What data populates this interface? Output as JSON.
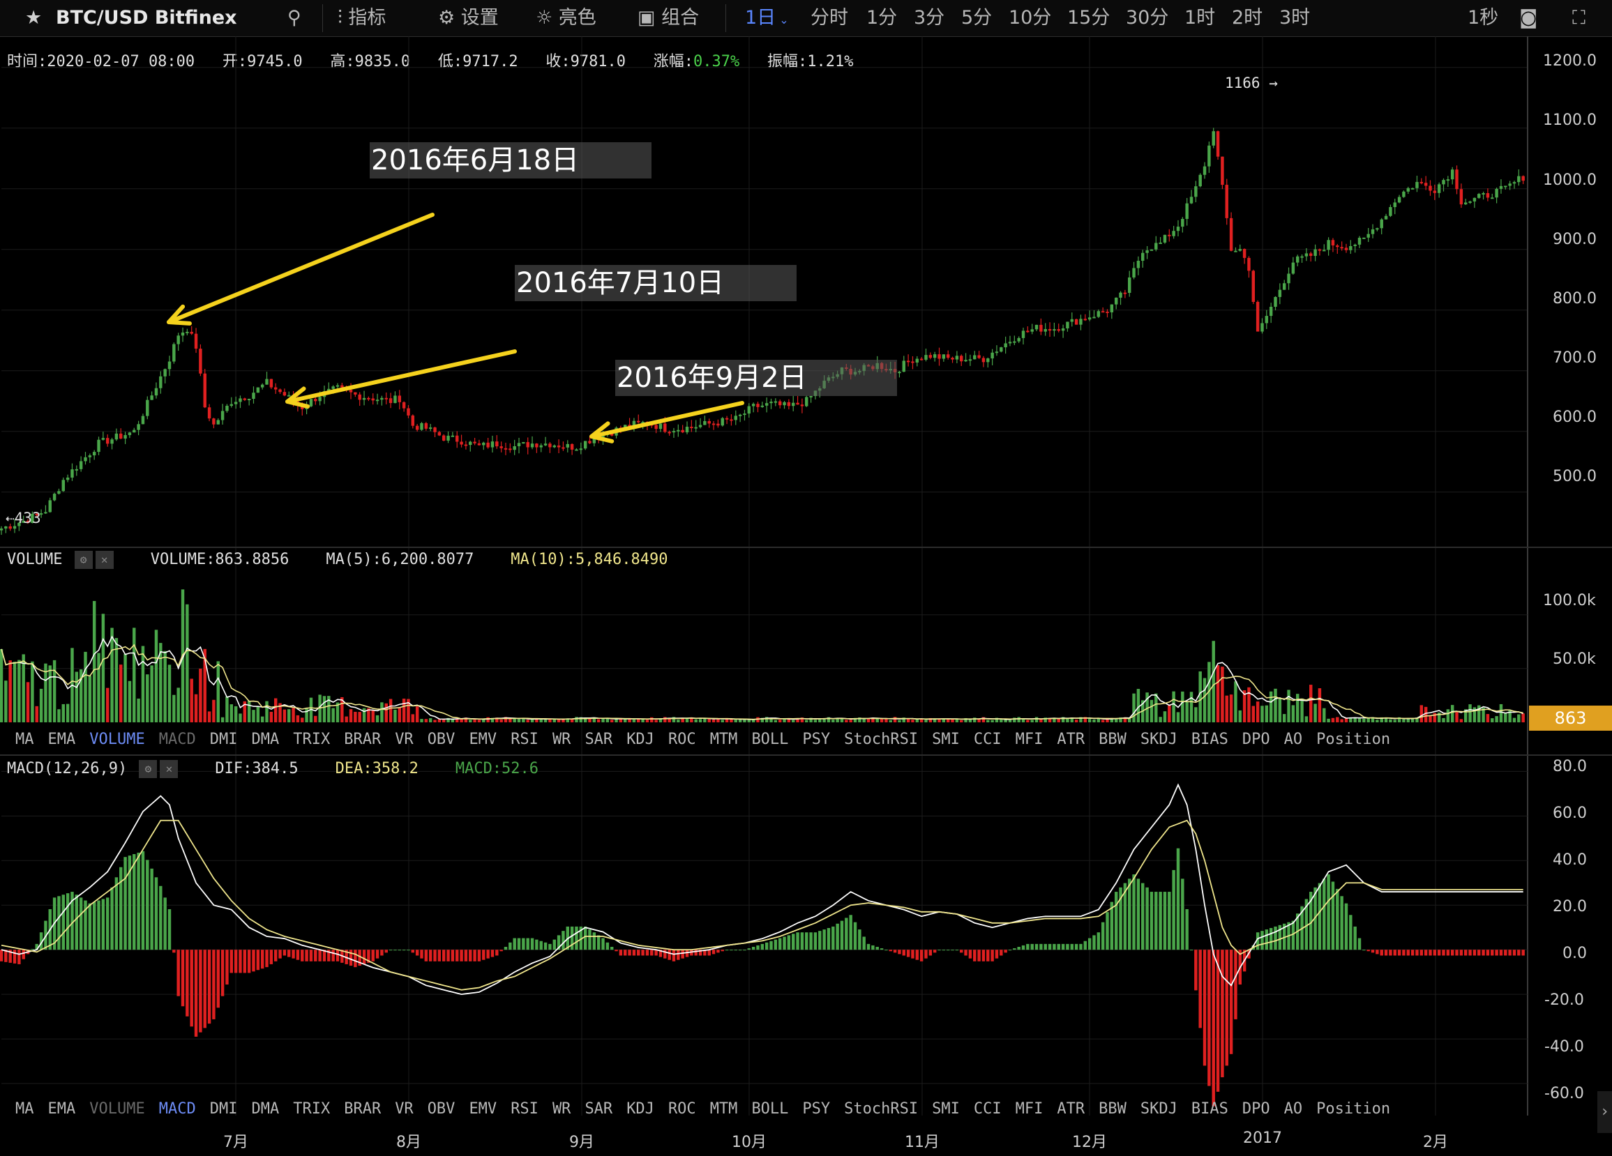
{
  "toolbar": {
    "symbol": "BTC/USD Bitfinex",
    "items": [
      "指标",
      "设置",
      "亮色",
      "组合"
    ],
    "active_interval": "1日",
    "intervals": [
      "分时",
      "1分",
      "3分",
      "5分",
      "10分",
      "15分",
      "30分",
      "1时",
      "2时",
      "3时"
    ],
    "right_interval": "1秒"
  },
  "info": {
    "time": "时间:2020-02-07 08:00",
    "open": "开:9745.0",
    "high": "高:9835.0",
    "low": "低:9717.2",
    "close": "收:9781.0",
    "change_label": "涨幅:",
    "change_value": "0.37%",
    "amplitude": "振幅:1.21%"
  },
  "volume_info": {
    "name": "VOLUME",
    "volume": "VOLUME:863.8856",
    "ma5": "MA(5):6,200.8077",
    "ma10": "MA(10):5,846.8490",
    "current": "863"
  },
  "macd_info": {
    "name": "MACD(12,26,9)",
    "dif": "DIF:384.5",
    "dea": "DEA:358.2",
    "macd": "MACD:52.6"
  },
  "indicator_tabs": [
    "MA",
    "EMA",
    "VOLUME",
    "MACD",
    "DMI",
    "DMA",
    "TRIX",
    "BRAR",
    "VR",
    "OBV",
    "EMV",
    "RSI",
    "WR",
    "SAR",
    "KDJ",
    "ROC",
    "MTM",
    "BOLL",
    "PSY",
    "StochRSI",
    "SMI",
    "CCI",
    "MFI",
    "ATR",
    "BBW",
    "SKDJ",
    "BIAS",
    "DPO",
    "AO",
    "Position"
  ],
  "annotations": [
    "2016年6月18日",
    "2016年7月10日",
    "2016年9月2日"
  ],
  "colors": {
    "up": "#4aa64a",
    "down": "#e02020",
    "arrow": "#f5d21d",
    "ma5": "#ffffff",
    "ma10": "#f0e68c",
    "price_tag": "#e0a020"
  },
  "chart_data": [
    {
      "type": "candlestick",
      "title": "BTC/USD Bitfinex",
      "x_labels": [
        "7月",
        "8月",
        "9月",
        "10月",
        "11月",
        "12月",
        "2017",
        "2月"
      ],
      "ylim": [
        410,
        1210
      ],
      "y_ticks": [
        "500.0",
        "600.0",
        "700.0",
        "800.0",
        "900.0",
        "1000.0",
        "1100.0",
        "1200.0"
      ],
      "markers": {
        "low": "433",
        "high": "1166"
      },
      "close_points": [
        [
          0,
          440
        ],
        [
          6,
          455
        ],
        [
          10,
          470
        ],
        [
          14,
          520
        ],
        [
          18,
          550
        ],
        [
          22,
          580
        ],
        [
          26,
          590
        ],
        [
          30,
          600
        ],
        [
          34,
          660
        ],
        [
          38,
          720
        ],
        [
          40,
          760
        ],
        [
          42,
          770
        ],
        [
          44,
          740
        ],
        [
          46,
          640
        ],
        [
          48,
          610
        ],
        [
          52,
          650
        ],
        [
          56,
          660
        ],
        [
          60,
          680
        ],
        [
          64,
          660
        ],
        [
          68,
          640
        ],
        [
          72,
          660
        ],
        [
          76,
          670
        ],
        [
          80,
          660
        ],
        [
          84,
          655
        ],
        [
          88,
          650
        ],
        [
          90,
          655
        ],
        [
          93,
          610
        ],
        [
          96,
          605
        ],
        [
          100,
          590
        ],
        [
          104,
          585
        ],
        [
          108,
          575
        ],
        [
          112,
          580
        ],
        [
          116,
          575
        ],
        [
          120,
          580
        ],
        [
          124,
          580
        ],
        [
          128,
          575
        ],
        [
          130,
          575
        ],
        [
          134,
          590
        ],
        [
          138,
          600
        ],
        [
          142,
          610
        ],
        [
          146,
          615
        ],
        [
          150,
          605
        ],
        [
          154,
          605
        ],
        [
          158,
          610
        ],
        [
          162,
          615
        ],
        [
          166,
          620
        ],
        [
          170,
          640
        ],
        [
          174,
          645
        ],
        [
          178,
          640
        ],
        [
          182,
          650
        ],
        [
          186,
          680
        ],
        [
          190,
          700
        ],
        [
          194,
          700
        ],
        [
          198,
          710
        ],
        [
          202,
          700
        ],
        [
          206,
          720
        ],
        [
          210,
          725
        ],
        [
          214,
          720
        ],
        [
          218,
          720
        ],
        [
          222,
          720
        ],
        [
          226,
          740
        ],
        [
          230,
          760
        ],
        [
          234,
          770
        ],
        [
          238,
          770
        ],
        [
          242,
          780
        ],
        [
          246,
          790
        ],
        [
          250,
          800
        ],
        [
          254,
          830
        ],
        [
          258,
          900
        ],
        [
          262,
          910
        ],
        [
          266,
          940
        ],
        [
          270,
          1000
        ],
        [
          272,
          1040
        ],
        [
          274,
          1100
        ],
        [
          276,
          1000
        ],
        [
          278,
          900
        ],
        [
          280,
          900
        ],
        [
          282,
          870
        ],
        [
          284,
          760
        ],
        [
          286,
          790
        ],
        [
          288,
          820
        ],
        [
          292,
          880
        ],
        [
          296,
          890
        ],
        [
          300,
          910
        ],
        [
          304,
          905
        ],
        [
          308,
          915
        ],
        [
          312,
          950
        ],
        [
          316,
          990
        ],
        [
          320,
          1010
        ],
        [
          324,
          1000
        ],
        [
          328,
          1030
        ],
        [
          330,
          980
        ],
        [
          332,
          980
        ],
        [
          336,
          990
        ],
        [
          340,
          1000
        ],
        [
          344,
          1020
        ]
      ]
    },
    {
      "type": "bar",
      "name": "VOLUME",
      "ylim": [
        0,
        140
      ],
      "y_ticks": [
        "50.0k",
        "100.0k"
      ],
      "units": "k"
    },
    {
      "type": "line",
      "name": "MACD(12,26,9)",
      "ylim": [
        -65,
        82
      ],
      "y_ticks": [
        "-60.0",
        "-40.0",
        "-20.0",
        "0.0",
        "20.0",
        "40.0",
        "60.0",
        "80.0"
      ],
      "series": [
        {
          "name": "DIF",
          "points": [
            [
              0,
              0
            ],
            [
              4,
              -2
            ],
            [
              8,
              0
            ],
            [
              12,
              12
            ],
            [
              16,
              22
            ],
            [
              20,
              28
            ],
            [
              24,
              35
            ],
            [
              28,
              48
            ],
            [
              32,
              62
            ],
            [
              36,
              69
            ],
            [
              38,
              65
            ],
            [
              40,
              50
            ],
            [
              44,
              30
            ],
            [
              48,
              20
            ],
            [
              52,
              18
            ],
            [
              56,
              10
            ],
            [
              60,
              6
            ],
            [
              64,
              5
            ],
            [
              68,
              2
            ],
            [
              72,
              0
            ],
            [
              76,
              -2
            ],
            [
              80,
              -5
            ],
            [
              84,
              -8
            ],
            [
              88,
              -10
            ],
            [
              92,
              -12
            ],
            [
              96,
              -16
            ],
            [
              100,
              -18
            ],
            [
              104,
              -20
            ],
            [
              108,
              -19
            ],
            [
              112,
              -15
            ],
            [
              116,
              -10
            ],
            [
              120,
              -6
            ],
            [
              124,
              -3
            ],
            [
              128,
              5
            ],
            [
              132,
              10
            ],
            [
              136,
              8
            ],
            [
              140,
              3
            ],
            [
              144,
              1
            ],
            [
              148,
              0
            ],
            [
              152,
              -2
            ],
            [
              156,
              -1
            ],
            [
              160,
              0
            ],
            [
              164,
              2
            ],
            [
              168,
              3
            ],
            [
              172,
              5
            ],
            [
              176,
              8
            ],
            [
              180,
              12
            ],
            [
              184,
              15
            ],
            [
              188,
              20
            ],
            [
              192,
              26
            ],
            [
              196,
              22
            ],
            [
              200,
              20
            ],
            [
              204,
              18
            ],
            [
              208,
              15
            ],
            [
              212,
              17
            ],
            [
              216,
              16
            ],
            [
              220,
              12
            ],
            [
              224,
              10
            ],
            [
              228,
              12
            ],
            [
              232,
              14
            ],
            [
              236,
              15
            ],
            [
              240,
              15
            ],
            [
              244,
              15
            ],
            [
              248,
              18
            ],
            [
              252,
              30
            ],
            [
              256,
              45
            ],
            [
              260,
              55
            ],
            [
              264,
              65
            ],
            [
              266,
              74
            ],
            [
              268,
              65
            ],
            [
              270,
              45
            ],
            [
              272,
              20
            ],
            [
              274,
              -2
            ],
            [
              276,
              -12
            ],
            [
              278,
              -16
            ],
            [
              280,
              -8
            ],
            [
              284,
              5
            ],
            [
              288,
              8
            ],
            [
              292,
              12
            ],
            [
              296,
              22
            ],
            [
              300,
              35
            ],
            [
              304,
              38
            ],
            [
              308,
              30
            ],
            [
              312,
              26
            ]
          ]
        },
        {
          "name": "DEA",
          "points": [
            [
              0,
              2
            ],
            [
              8,
              -1
            ],
            [
              12,
              3
            ],
            [
              16,
              12
            ],
            [
              20,
              20
            ],
            [
              24,
              26
            ],
            [
              28,
              32
            ],
            [
              32,
              45
            ],
            [
              36,
              58
            ],
            [
              40,
              58
            ],
            [
              44,
              45
            ],
            [
              48,
              32
            ],
            [
              52,
              22
            ],
            [
              56,
              14
            ],
            [
              60,
              9
            ],
            [
              64,
              6
            ],
            [
              68,
              4
            ],
            [
              72,
              2
            ],
            [
              76,
              0
            ],
            [
              80,
              -2
            ],
            [
              84,
              -6
            ],
            [
              88,
              -10
            ],
            [
              92,
              -12
            ],
            [
              96,
              -14
            ],
            [
              100,
              -16
            ],
            [
              104,
              -18
            ],
            [
              108,
              -17
            ],
            [
              112,
              -14
            ],
            [
              116,
              -12
            ],
            [
              120,
              -8
            ],
            [
              124,
              -4
            ],
            [
              128,
              1
            ],
            [
              132,
              6
            ],
            [
              136,
              6
            ],
            [
              140,
              4
            ],
            [
              144,
              2
            ],
            [
              148,
              1
            ],
            [
              152,
              0
            ],
            [
              156,
              0
            ],
            [
              160,
              1
            ],
            [
              164,
              2
            ],
            [
              168,
              3
            ],
            [
              172,
              4
            ],
            [
              176,
              6
            ],
            [
              180,
              9
            ],
            [
              184,
              12
            ],
            [
              188,
              16
            ],
            [
              192,
              20
            ],
            [
              196,
              21
            ],
            [
              200,
              20
            ],
            [
              204,
              19
            ],
            [
              208,
              17
            ],
            [
              212,
              17
            ],
            [
              216,
              16
            ],
            [
              220,
              14
            ],
            [
              224,
              12
            ],
            [
              228,
              12
            ],
            [
              232,
              13
            ],
            [
              236,
              14
            ],
            [
              240,
              14
            ],
            [
              244,
              14
            ],
            [
              248,
              15
            ],
            [
              252,
              20
            ],
            [
              256,
              32
            ],
            [
              260,
              45
            ],
            [
              264,
              55
            ],
            [
              268,
              58
            ],
            [
              270,
              52
            ],
            [
              272,
              40
            ],
            [
              274,
              25
            ],
            [
              276,
              10
            ],
            [
              278,
              2
            ],
            [
              280,
              -2
            ],
            [
              284,
              2
            ],
            [
              288,
              4
            ],
            [
              292,
              7
            ],
            [
              296,
              12
            ],
            [
              300,
              22
            ],
            [
              304,
              30
            ],
            [
              308,
              30
            ],
            [
              312,
              27
            ]
          ]
        }
      ]
    }
  ]
}
